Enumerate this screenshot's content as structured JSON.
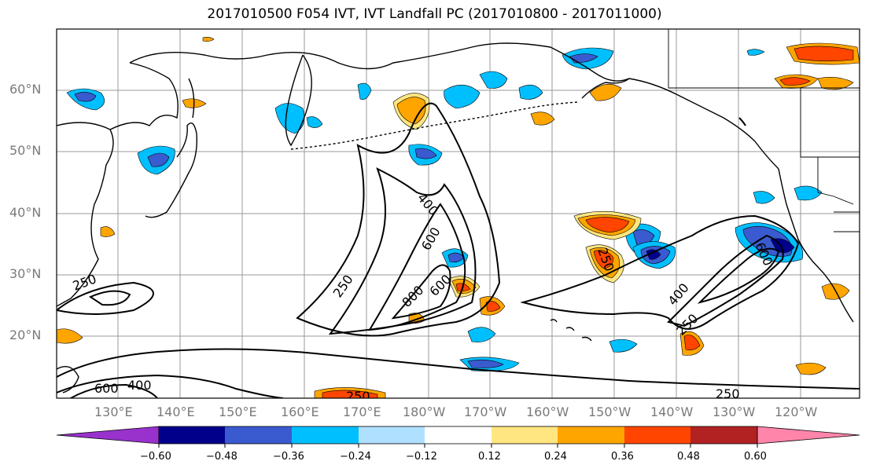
{
  "title": "2017010500 F054 IVT, IVT Landfall PC (2017010800 - 2017011000)",
  "lat_labels": [
    "60°N",
    "50°N",
    "40°N",
    "30°N",
    "20°N"
  ],
  "lon_labels": [
    "130°E",
    "140°E",
    "150°E",
    "160°E",
    "170°E",
    "180°W",
    "170°W",
    "160°W",
    "150°W",
    "140°W",
    "130°W",
    "120°W"
  ],
  "contour_labels": [
    "250",
    "400",
    "600",
    "250",
    "400",
    "600",
    "800",
    "600",
    "250",
    "600",
    "400",
    "250",
    "250",
    "250"
  ],
  "colorbar": {
    "tick_labels": [
      "−0.60",
      "−0.48",
      "−0.36",
      "−0.24",
      "−0.12",
      "0.12",
      "0.24",
      "0.36",
      "0.48",
      "0.60"
    ],
    "colors": [
      "#9932cc",
      "#00008b",
      "#3a5bcf",
      "#00bfff",
      "#b0e0ff",
      "#ffffff",
      "#ffe680",
      "#ffa500",
      "#ff4500",
      "#b22222",
      "#ff85aa"
    ]
  }
}
